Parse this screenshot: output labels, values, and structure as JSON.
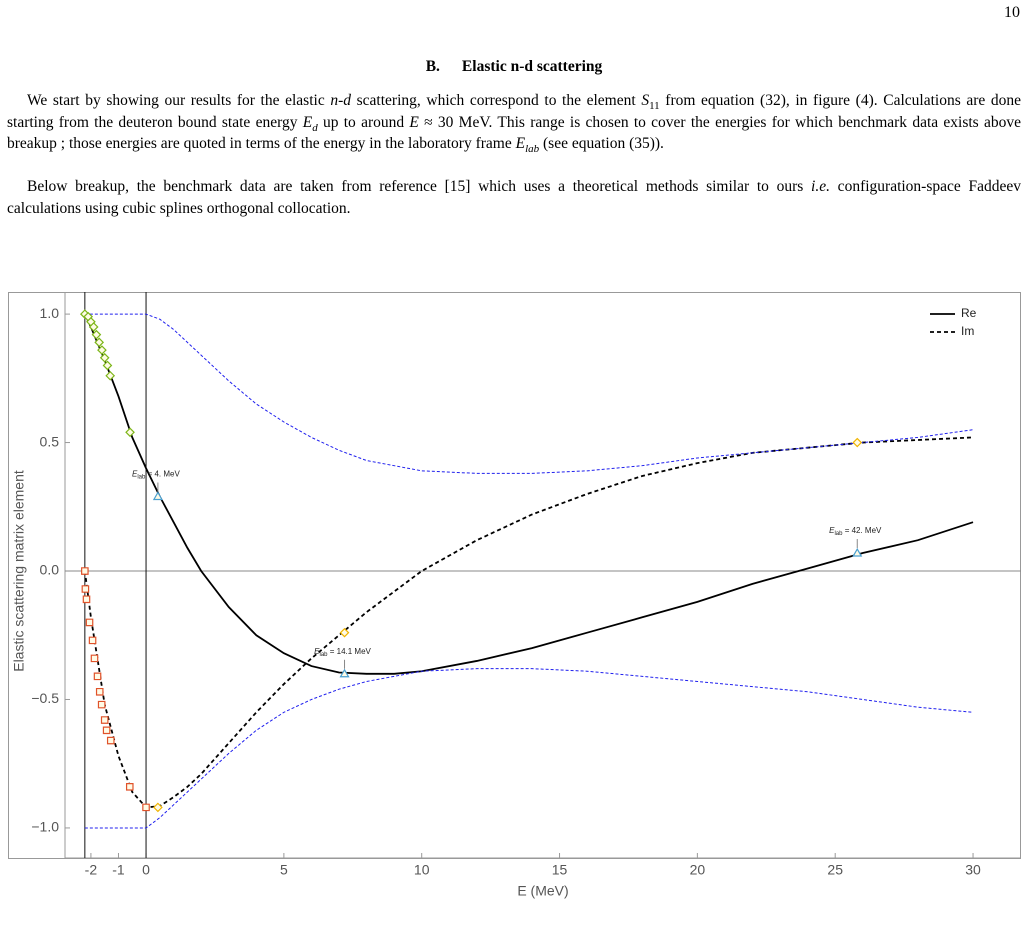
{
  "page_number": "10",
  "section": {
    "number": "B.",
    "title": "Elastic n-d scattering"
  },
  "paragraphs": [
    [
      "We start by showing our results for the elastic ",
      "n-d",
      " scattering, which correspond to the element ",
      "S",
      "11",
      " from equation (32), in figure (4). Calculations are done starting from the deuteron bound state energy ",
      "E",
      "d",
      " up to around ",
      "E",
      " ≈ 30 MeV. This range is chosen to cover the energies for which benchmark data exists above breakup ; those energies are quoted in terms of the energy in the laboratory frame ",
      "E",
      "lab",
      " (see equation (35))."
    ],
    [
      "Below breakup, the benchmark data are taken from reference [15] which uses a theoretical methods similar to ours ",
      "i.e.",
      " configuration-space Faddeev calculations using cubic splines orthogonal collocation."
    ]
  ],
  "chart_data": {
    "type": "line",
    "xlabel": "E (MeV)",
    "ylabel": "Elastic scattering matrix element",
    "xlim": [
      -2.94,
      31.74
    ],
    "ylim": [
      -1.117,
      1.086
    ],
    "xticks": [
      -2,
      -1,
      0,
      5,
      10,
      15,
      20,
      25,
      30
    ],
    "yticks": [
      {
        "value": -1,
        "label": "−1.0"
      },
      {
        "value": -0.5,
        "label": "−0.5"
      },
      {
        "value": 0,
        "label": "0.0"
      },
      {
        "value": 0.5,
        "label": "0.5"
      },
      {
        "value": 1,
        "label": "1.0"
      }
    ],
    "vlines": [
      -2.22,
      0
    ],
    "hlines": [
      0
    ],
    "x": [
      -2.22,
      -2,
      -1.5,
      -1,
      -0.5,
      0,
      0.5,
      1,
      1.5,
      2,
      3,
      4,
      5,
      6,
      7,
      8,
      9,
      10,
      12,
      14,
      16,
      18,
      20,
      22,
      24,
      26,
      28,
      30
    ],
    "series": [
      {
        "name": "Re",
        "color": "#000000",
        "dash": false,
        "values": [
          1.0,
          0.95,
          0.82,
          0.68,
          0.52,
          0.4,
          0.29,
          0.19,
          0.09,
          0.0,
          -0.14,
          -0.25,
          -0.32,
          -0.37,
          -0.395,
          -0.4,
          -0.4,
          -0.39,
          -0.35,
          -0.3,
          -0.24,
          -0.18,
          -0.12,
          -0.05,
          0.01,
          0.07,
          0.12,
          0.19
        ]
      },
      {
        "name": "Im",
        "color": "#000000",
        "dash": true,
        "values": [
          0.0,
          -0.18,
          -0.52,
          -0.72,
          -0.86,
          -0.92,
          -0.915,
          -0.88,
          -0.84,
          -0.79,
          -0.67,
          -0.55,
          -0.44,
          -0.34,
          -0.25,
          -0.16,
          -0.08,
          0.0,
          0.12,
          0.22,
          0.3,
          0.37,
          0.42,
          0.46,
          0.48,
          0.5,
          0.51,
          0.52
        ]
      },
      {
        "color": "#2020ee",
        "dash": true,
        "values": [
          1,
          1,
          1,
          1,
          1,
          1,
          0.98,
          0.94,
          0.89,
          0.84,
          0.74,
          0.65,
          0.58,
          0.52,
          0.47,
          0.43,
          0.41,
          0.39,
          0.38,
          0.38,
          0.39,
          0.41,
          0.44,
          0.46,
          0.48,
          0.5,
          0.52,
          0.55
        ]
      },
      {
        "color": "#2020ee",
        "dash": true,
        "values": [
          -1,
          -1,
          -1,
          -1,
          -1,
          -1,
          -0.96,
          -0.91,
          -0.86,
          -0.81,
          -0.71,
          -0.62,
          -0.55,
          -0.5,
          -0.46,
          -0.43,
          -0.41,
          -0.39,
          -0.38,
          -0.38,
          -0.39,
          -0.41,
          -0.43,
          -0.45,
          -0.47,
          -0.5,
          -0.53,
          -0.55
        ]
      }
    ],
    "markers": [
      {
        "shape": "diamond",
        "color": "#7cb518",
        "x": [
          -2.22,
          -2.1,
          -2.0,
          -1.9,
          -1.8,
          -1.7,
          -1.6,
          -1.5,
          -1.4,
          -1.3,
          -0.58
        ],
        "values": [
          1.0,
          0.99,
          0.97,
          0.95,
          0.92,
          0.89,
          0.86,
          0.83,
          0.8,
          0.76,
          0.54
        ]
      },
      {
        "shape": "square",
        "color": "#e0522a",
        "x": [
          -2.22,
          -2.2,
          -2.16,
          -2.05,
          -1.94,
          -1.87,
          -1.76,
          -1.68,
          -1.61,
          -1.5,
          -1.43,
          -1.28,
          -0.59,
          0
        ],
        "values": [
          0,
          -0.07,
          -0.11,
          -0.2,
          -0.27,
          -0.34,
          -0.41,
          -0.47,
          -0.52,
          -0.58,
          -0.62,
          -0.66,
          -0.84,
          -0.92
        ]
      },
      {
        "shape": "diamond",
        "color": "#f0b400",
        "x": [
          0.43,
          7.2,
          25.8
        ],
        "values": [
          -0.92,
          -0.24,
          0.5
        ]
      },
      {
        "shape": "triangle",
        "color": "#4a9fd0",
        "x": [
          0.43,
          7.2,
          25.8
        ],
        "values": [
          0.29,
          -0.4,
          0.07
        ]
      }
    ],
    "annotations": [
      {
        "symbol": "E",
        "subscript": "lab",
        "text": " = 4. MeV"
      },
      {
        "symbol": "E",
        "subscript": "lab",
        "text": " = 14.1 MeV"
      },
      {
        "symbol": "E",
        "subscript": "lab",
        "text": " = 42. MeV"
      }
    ]
  }
}
